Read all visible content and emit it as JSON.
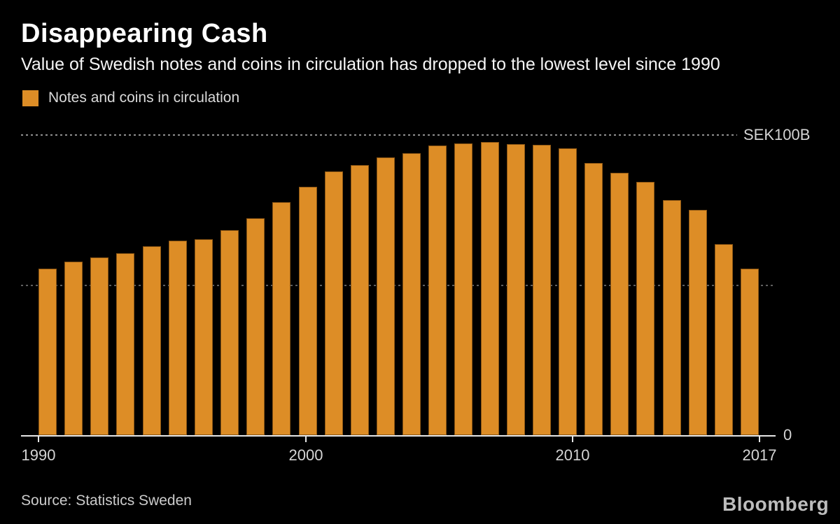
{
  "header": {
    "title": "Disappearing Cash",
    "subtitle": "Value of Swedish notes and coins in circulation has dropped to the lowest level since 1990"
  },
  "legend": {
    "label": "Notes and coins in circulation",
    "swatch_color": "#dd8d26"
  },
  "chart_data": {
    "type": "bar",
    "title": "Disappearing Cash",
    "unit": "SEK billions",
    "bar_color": "#dd8d26",
    "ylim": [
      0,
      100
    ],
    "gridlines": [
      50,
      100
    ],
    "grid": "dotted-horizontal",
    "legend_position": "top-left",
    "y_axis_top_label": "SEK100B",
    "y_axis_zero_label": "0",
    "categories": [
      1990,
      1991,
      1992,
      1993,
      1994,
      1995,
      1996,
      1997,
      1998,
      1999,
      2000,
      2001,
      2002,
      2003,
      2004,
      2005,
      2006,
      2007,
      2008,
      2009,
      2010,
      2011,
      2012,
      2013,
      2014,
      2015,
      2016,
      2017
    ],
    "values": [
      55.3,
      57.7,
      59.1,
      60.5,
      62.8,
      64.7,
      65.1,
      68.1,
      72.1,
      77.4,
      82.6,
      87.7,
      89.8,
      92.3,
      93.7,
      96.3,
      97.0,
      97.4,
      96.7,
      96.5,
      95.3,
      90.5,
      87.2,
      84.2,
      78.1,
      74.9,
      63.5,
      55.3
    ],
    "series": [
      {
        "name": "Notes and coins in circulation",
        "values": [
          55.3,
          57.7,
          59.1,
          60.5,
          62.8,
          64.7,
          65.1,
          68.1,
          72.1,
          77.4,
          82.6,
          87.7,
          89.8,
          92.3,
          93.7,
          96.3,
          97.0,
          97.4,
          96.7,
          96.5,
          95.3,
          90.5,
          87.2,
          84.2,
          78.1,
          74.9,
          63.5,
          55.3
        ]
      }
    ],
    "x_ticks": [
      {
        "label": "1990",
        "index": 0
      },
      {
        "label": "2000",
        "index": 10
      },
      {
        "label": "2010",
        "index": 20
      },
      {
        "label": "2017",
        "index": 27
      }
    ]
  },
  "footer": {
    "source": "Source: Statistics Sweden",
    "brand": "Bloomberg"
  }
}
